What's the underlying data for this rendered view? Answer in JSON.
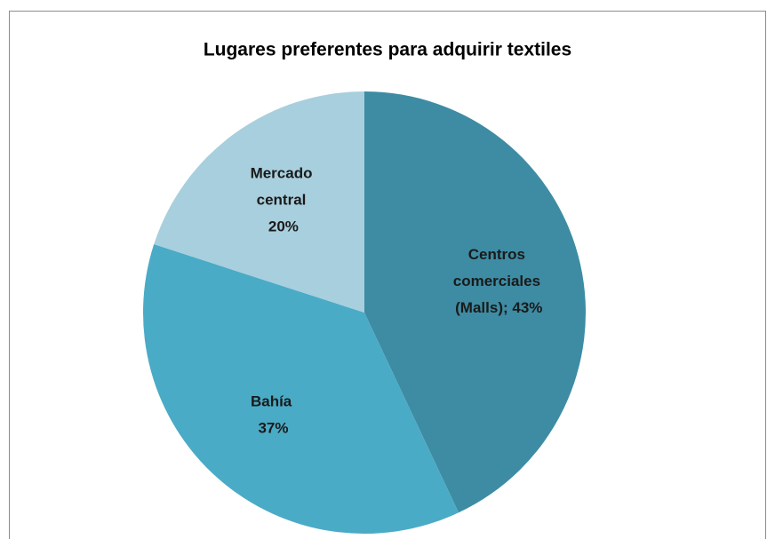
{
  "chart_data": {
    "type": "pie",
    "title": "Lugares preferentes para adquirir textiles",
    "values": [
      43,
      37,
      20
    ],
    "value_labels": [
      "Centros comerciales (Malls); 43%",
      "Bahía 37%",
      "Mercado central 20%"
    ],
    "colors": [
      "#3d8ca3",
      "#4aabc6",
      "#a8cfdd"
    ]
  }
}
